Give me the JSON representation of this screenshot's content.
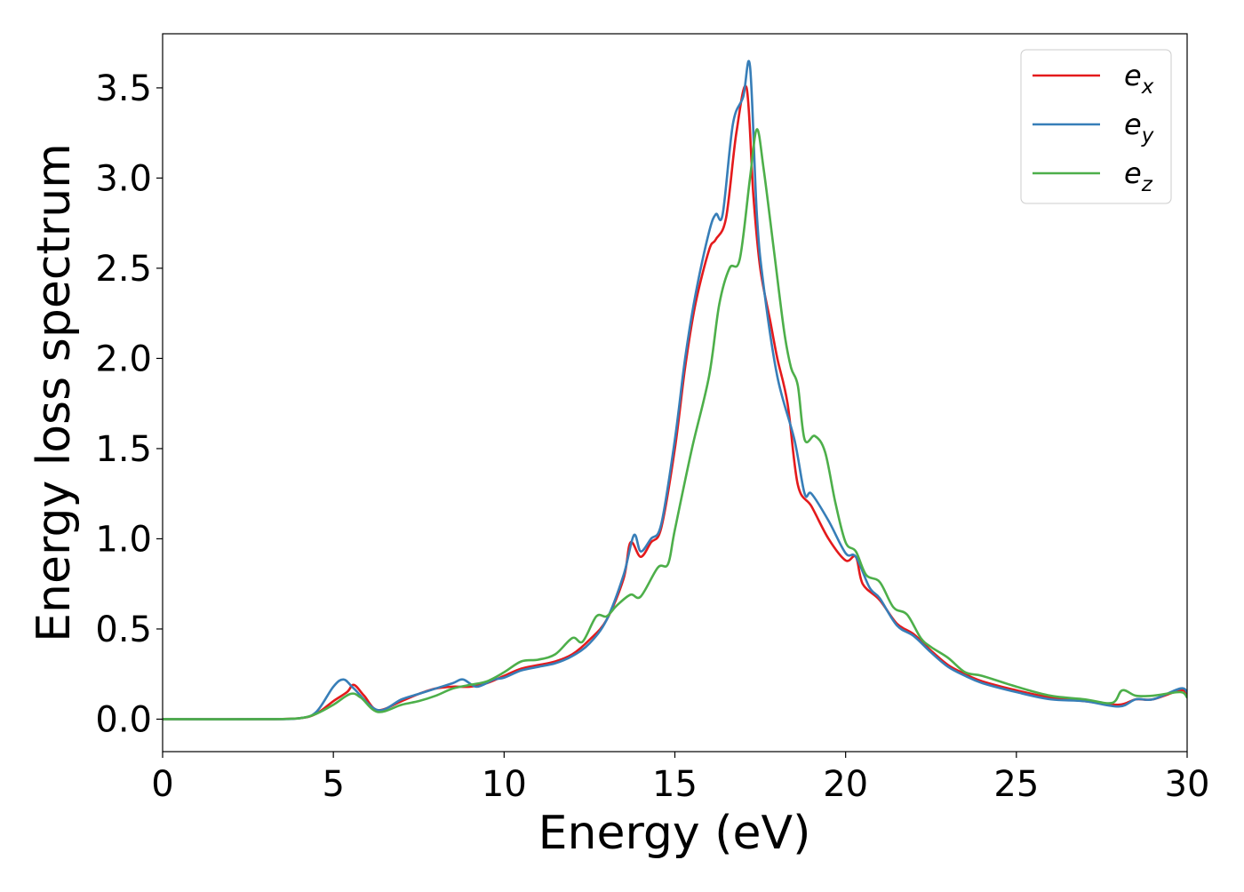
{
  "chart_data": {
    "type": "line",
    "xlabel": "Energy (eV)",
    "ylabel": "Energy loss spectrum",
    "xlim": [
      0,
      30
    ],
    "ylim": [
      -0.18,
      3.8
    ],
    "xticks": [
      0,
      5,
      10,
      15,
      20,
      25,
      30
    ],
    "yticks": [
      0.0,
      0.5,
      1.0,
      1.5,
      2.0,
      2.5,
      3.0,
      3.5
    ],
    "xtick_labels": [
      "0",
      "5",
      "10",
      "15",
      "20",
      "25",
      "30"
    ],
    "ytick_labels": [
      "0.0",
      "0.5",
      "1.0",
      "1.5",
      "2.0",
      "2.5",
      "3.0",
      "3.5"
    ],
    "grid": false,
    "legend_position": "top-right",
    "series": [
      {
        "name": "e_x",
        "label_main": "e",
        "label_sub": "x",
        "color": "#e41a1c",
        "points": [
          [
            0,
            0.0
          ],
          [
            3.0,
            0.0
          ],
          [
            4.0,
            0.005
          ],
          [
            4.5,
            0.03
          ],
          [
            5.0,
            0.1
          ],
          [
            5.4,
            0.15
          ],
          [
            5.6,
            0.19
          ],
          [
            5.9,
            0.13
          ],
          [
            6.3,
            0.05
          ],
          [
            7.0,
            0.1
          ],
          [
            7.5,
            0.14
          ],
          [
            8.0,
            0.17
          ],
          [
            8.5,
            0.18
          ],
          [
            9.0,
            0.18
          ],
          [
            9.5,
            0.2
          ],
          [
            10.0,
            0.24
          ],
          [
            10.5,
            0.28
          ],
          [
            11.0,
            0.3
          ],
          [
            11.5,
            0.32
          ],
          [
            12.0,
            0.36
          ],
          [
            12.5,
            0.44
          ],
          [
            13.0,
            0.55
          ],
          [
            13.5,
            0.78
          ],
          [
            13.7,
            0.98
          ],
          [
            14.0,
            0.9
          ],
          [
            14.3,
            0.98
          ],
          [
            14.6,
            1.06
          ],
          [
            15.0,
            1.5
          ],
          [
            15.3,
            1.95
          ],
          [
            15.6,
            2.3
          ],
          [
            16.0,
            2.6
          ],
          [
            16.2,
            2.66
          ],
          [
            16.5,
            2.78
          ],
          [
            16.8,
            3.25
          ],
          [
            17.1,
            3.5
          ],
          [
            17.3,
            2.9
          ],
          [
            17.5,
            2.5
          ],
          [
            17.8,
            2.2
          ],
          [
            18.0,
            2.0
          ],
          [
            18.3,
            1.75
          ],
          [
            18.6,
            1.3
          ],
          [
            19.0,
            1.18
          ],
          [
            19.5,
            1.0
          ],
          [
            20.0,
            0.88
          ],
          [
            20.3,
            0.9
          ],
          [
            20.5,
            0.75
          ],
          [
            21.0,
            0.66
          ],
          [
            21.5,
            0.53
          ],
          [
            22.0,
            0.47
          ],
          [
            22.5,
            0.38
          ],
          [
            23.0,
            0.3
          ],
          [
            23.5,
            0.25
          ],
          [
            24.0,
            0.21
          ],
          [
            25.0,
            0.16
          ],
          [
            26.0,
            0.12
          ],
          [
            27.0,
            0.1
          ],
          [
            28.0,
            0.08
          ],
          [
            28.5,
            0.11
          ],
          [
            29.0,
            0.11
          ],
          [
            29.8,
            0.16
          ],
          [
            30.0,
            0.14
          ]
        ]
      },
      {
        "name": "e_y",
        "label_main": "e",
        "label_sub": "y",
        "color": "#377eb8",
        "points": [
          [
            0,
            0.0
          ],
          [
            3.0,
            0.0
          ],
          [
            4.0,
            0.005
          ],
          [
            4.5,
            0.04
          ],
          [
            5.0,
            0.18
          ],
          [
            5.3,
            0.22
          ],
          [
            5.6,
            0.17
          ],
          [
            6.3,
            0.05
          ],
          [
            7.0,
            0.11
          ],
          [
            7.5,
            0.14
          ],
          [
            8.0,
            0.17
          ],
          [
            8.5,
            0.2
          ],
          [
            8.8,
            0.22
          ],
          [
            9.2,
            0.18
          ],
          [
            9.7,
            0.22
          ],
          [
            10.0,
            0.23
          ],
          [
            10.5,
            0.27
          ],
          [
            11.0,
            0.29
          ],
          [
            11.5,
            0.31
          ],
          [
            12.0,
            0.35
          ],
          [
            12.5,
            0.42
          ],
          [
            13.0,
            0.55
          ],
          [
            13.5,
            0.8
          ],
          [
            13.8,
            1.02
          ],
          [
            14.0,
            0.93
          ],
          [
            14.3,
            1.0
          ],
          [
            14.6,
            1.08
          ],
          [
            15.0,
            1.55
          ],
          [
            15.3,
            2.0
          ],
          [
            15.6,
            2.35
          ],
          [
            16.0,
            2.7
          ],
          [
            16.2,
            2.8
          ],
          [
            16.4,
            2.8
          ],
          [
            16.7,
            3.3
          ],
          [
            17.0,
            3.45
          ],
          [
            17.2,
            3.62
          ],
          [
            17.4,
            2.8
          ],
          [
            17.6,
            2.4
          ],
          [
            18.0,
            1.9
          ],
          [
            18.5,
            1.55
          ],
          [
            18.8,
            1.25
          ],
          [
            19.0,
            1.25
          ],
          [
            19.5,
            1.1
          ],
          [
            20.0,
            0.92
          ],
          [
            20.3,
            0.9
          ],
          [
            20.7,
            0.73
          ],
          [
            21.0,
            0.67
          ],
          [
            21.5,
            0.52
          ],
          [
            22.0,
            0.46
          ],
          [
            22.5,
            0.37
          ],
          [
            23.0,
            0.29
          ],
          [
            23.5,
            0.24
          ],
          [
            24.0,
            0.2
          ],
          [
            25.0,
            0.15
          ],
          [
            26.0,
            0.11
          ],
          [
            27.0,
            0.1
          ],
          [
            28.0,
            0.07
          ],
          [
            28.5,
            0.11
          ],
          [
            29.0,
            0.11
          ],
          [
            29.8,
            0.17
          ],
          [
            30.0,
            0.15
          ]
        ]
      },
      {
        "name": "e_z",
        "label_main": "e",
        "label_sub": "z",
        "color": "#4daf4a",
        "points": [
          [
            0,
            0.0
          ],
          [
            3.0,
            0.0
          ],
          [
            4.0,
            0.005
          ],
          [
            4.5,
            0.03
          ],
          [
            5.0,
            0.08
          ],
          [
            5.5,
            0.14
          ],
          [
            5.8,
            0.12
          ],
          [
            6.3,
            0.04
          ],
          [
            7.0,
            0.08
          ],
          [
            7.5,
            0.1
          ],
          [
            8.0,
            0.13
          ],
          [
            8.5,
            0.17
          ],
          [
            9.0,
            0.19
          ],
          [
            9.5,
            0.21
          ],
          [
            10.0,
            0.26
          ],
          [
            10.5,
            0.32
          ],
          [
            11.0,
            0.33
          ],
          [
            11.5,
            0.36
          ],
          [
            12.0,
            0.45
          ],
          [
            12.3,
            0.43
          ],
          [
            12.7,
            0.57
          ],
          [
            13.0,
            0.57
          ],
          [
            13.3,
            0.63
          ],
          [
            13.7,
            0.69
          ],
          [
            14.0,
            0.68
          ],
          [
            14.5,
            0.84
          ],
          [
            14.8,
            0.86
          ],
          [
            15.0,
            1.05
          ],
          [
            15.5,
            1.5
          ],
          [
            16.0,
            1.9
          ],
          [
            16.3,
            2.3
          ],
          [
            16.6,
            2.5
          ],
          [
            16.9,
            2.55
          ],
          [
            17.2,
            3.0
          ],
          [
            17.4,
            3.27
          ],
          [
            17.6,
            3.05
          ],
          [
            17.9,
            2.6
          ],
          [
            18.2,
            2.15
          ],
          [
            18.4,
            1.95
          ],
          [
            18.6,
            1.85
          ],
          [
            18.8,
            1.55
          ],
          [
            19.1,
            1.57
          ],
          [
            19.4,
            1.48
          ],
          [
            19.7,
            1.2
          ],
          [
            20.0,
            0.98
          ],
          [
            20.3,
            0.93
          ],
          [
            20.6,
            0.8
          ],
          [
            21.0,
            0.76
          ],
          [
            21.4,
            0.62
          ],
          [
            21.8,
            0.58
          ],
          [
            22.2,
            0.45
          ],
          [
            22.5,
            0.4
          ],
          [
            23.0,
            0.34
          ],
          [
            23.5,
            0.26
          ],
          [
            24.0,
            0.24
          ],
          [
            25.0,
            0.18
          ],
          [
            26.0,
            0.13
          ],
          [
            27.0,
            0.11
          ],
          [
            27.8,
            0.09
          ],
          [
            28.1,
            0.16
          ],
          [
            28.5,
            0.13
          ],
          [
            29.0,
            0.13
          ],
          [
            29.8,
            0.15
          ],
          [
            30.0,
            0.12
          ]
        ]
      }
    ]
  }
}
